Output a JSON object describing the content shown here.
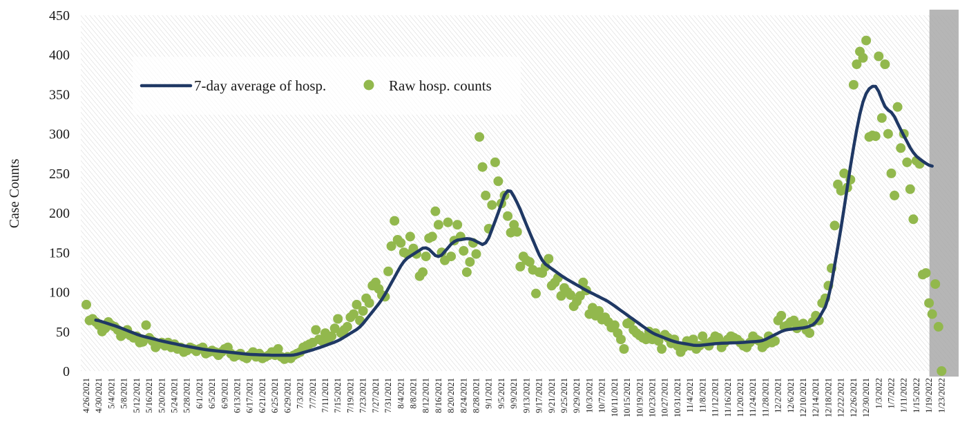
{
  "chart_data": {
    "type": "line",
    "title": "",
    "xlabel": "",
    "ylabel": "Case Counts",
    "ylim": [
      0,
      450
    ],
    "yticks": [
      0,
      50,
      100,
      150,
      200,
      250,
      300,
      350,
      400,
      450
    ],
    "x_start": "4/26/2021",
    "x_end": "1/26/2022",
    "xticks": [
      "4/26/2021",
      "4/30/2021",
      "5/4/2021",
      "5/8/2021",
      "5/12/2021",
      "5/16/2021",
      "5/20/2021",
      "5/24/2021",
      "5/28/2021",
      "6/1/2021",
      "6/5/2021",
      "6/9/2021",
      "6/13/2021",
      "6/17/2021",
      "6/21/2021",
      "6/25/2021",
      "6/29/2021",
      "7/3/2021",
      "7/7/2021",
      "7/11/2021",
      "7/15/2021",
      "7/19/2021",
      "7/23/2021",
      "7/27/2021",
      "7/31/2021",
      "8/4/2021",
      "8/8/2021",
      "8/12/2021",
      "8/16/2021",
      "8/20/2021",
      "8/24/2021",
      "8/28/2021",
      "9/1/2021",
      "9/5/2021",
      "9/9/2021",
      "9/13/2021",
      "9/17/2021",
      "9/21/2021",
      "9/25/2021",
      "9/29/2021",
      "10/3/2021",
      "10/7/2021",
      "10/11/2021",
      "10/15/2021",
      "10/19/2021",
      "10/23/2021",
      "10/27/2021",
      "10/31/2021",
      "11/4/2021",
      "11/8/2021",
      "11/12/2021",
      "11/16/2021",
      "11/20/2021",
      "11/24/2021",
      "11/28/2021",
      "12/2/2021",
      "12/6/2021",
      "12/10/2021",
      "12/14/2021",
      "12/18/2021",
      "12/22/2021",
      "12/26/2021",
      "12/30/2021",
      "1/3/2022",
      "1/7/2022",
      "1/11/2022",
      "1/15/2022",
      "1/19/2022",
      "1/23/2022"
    ],
    "grid": false,
    "legend_position": "top-left",
    "shaded_region": {
      "start": "1/20/2022",
      "end": "1/26/2022",
      "color": "#a6a6a6"
    },
    "series": [
      {
        "name": "7-day average of hosp.",
        "kind": "line",
        "color": "#1f3864",
        "start": "4/29/2021",
        "end": "1/20/2022",
        "anchors": [
          {
            "date": "4/29/2021",
            "y": 65
          },
          {
            "date": "5/6/2021",
            "y": 56
          },
          {
            "date": "5/13/2021",
            "y": 45
          },
          {
            "date": "5/20/2021",
            "y": 38
          },
          {
            "date": "5/27/2021",
            "y": 32
          },
          {
            "date": "6/3/2021",
            "y": 27
          },
          {
            "date": "6/10/2021",
            "y": 24
          },
          {
            "date": "6/17/2021",
            "y": 21
          },
          {
            "date": "6/24/2021",
            "y": 20
          },
          {
            "date": "7/1/2021",
            "y": 20
          },
          {
            "date": "7/8/2021",
            "y": 28
          },
          {
            "date": "7/15/2021",
            "y": 38
          },
          {
            "date": "7/22/2021",
            "y": 55
          },
          {
            "date": "7/29/2021",
            "y": 90
          },
          {
            "date": "8/5/2021",
            "y": 140
          },
          {
            "date": "8/12/2021",
            "y": 158
          },
          {
            "date": "8/16/2021",
            "y": 142
          },
          {
            "date": "8/21/2021",
            "y": 165
          },
          {
            "date": "8/26/2021",
            "y": 168
          },
          {
            "date": "8/31/2021",
            "y": 158
          },
          {
            "date": "9/4/2021",
            "y": 200
          },
          {
            "date": "9/7/2021",
            "y": 234
          },
          {
            "date": "9/10/2021",
            "y": 214
          },
          {
            "date": "9/14/2021",
            "y": 175
          },
          {
            "date": "9/18/2021",
            "y": 138
          },
          {
            "date": "9/25/2021",
            "y": 118
          },
          {
            "date": "10/2/2021",
            "y": 102
          },
          {
            "date": "10/9/2021",
            "y": 88
          },
          {
            "date": "10/16/2021",
            "y": 68
          },
          {
            "date": "10/23/2021",
            "y": 48
          },
          {
            "date": "10/30/2021",
            "y": 37
          },
          {
            "date": "11/6/2021",
            "y": 32
          },
          {
            "date": "11/13/2021",
            "y": 35
          },
          {
            "date": "11/20/2021",
            "y": 36
          },
          {
            "date": "11/27/2021",
            "y": 38
          },
          {
            "date": "12/4/2021",
            "y": 52
          },
          {
            "date": "12/11/2021",
            "y": 55
          },
          {
            "date": "12/14/2021",
            "y": 60
          },
          {
            "date": "12/18/2021",
            "y": 88
          },
          {
            "date": "12/22/2021",
            "y": 180
          },
          {
            "date": "12/26/2021",
            "y": 285
          },
          {
            "date": "12/29/2021",
            "y": 345
          },
          {
            "date": "1/1/2022",
            "y": 363
          },
          {
            "date": "1/3/2022",
            "y": 357
          },
          {
            "date": "1/5/2022",
            "y": 330
          },
          {
            "date": "1/7/2022",
            "y": 330
          },
          {
            "date": "1/10/2022",
            "y": 305
          },
          {
            "date": "1/14/2022",
            "y": 275
          },
          {
            "date": "1/17/2022",
            "y": 265
          },
          {
            "date": "1/20/2022",
            "y": 258
          }
        ]
      },
      {
        "name": "Raw hosp. counts",
        "kind": "scatter",
        "color": "#92b84d",
        "start": "4/26/2021",
        "values": [
          84,
          64,
          66,
          62,
          58,
          50,
          54,
          62,
          58,
          56,
          52,
          44,
          47,
          52,
          45,
          42,
          44,
          36,
          37,
          58,
          42,
          38,
          30,
          34,
          36,
          32,
          36,
          30,
          34,
          28,
          30,
          24,
          26,
          30,
          28,
          25,
          28,
          30,
          22,
          24,
          26,
          24,
          20,
          24,
          28,
          30,
          22,
          18,
          20,
          22,
          18,
          16,
          20,
          24,
          18,
          22,
          16,
          18,
          20,
          24,
          20,
          28,
          18,
          15,
          18,
          16,
          20,
          22,
          24,
          30,
          32,
          34,
          36,
          52,
          40,
          38,
          48,
          40,
          44,
          54,
          66,
          48,
          52,
          56,
          68,
          72,
          84,
          64,
          76,
          92,
          86,
          108,
          112,
          104,
          96,
          94,
          126,
          158,
          190,
          166,
          162,
          150,
          148,
          170,
          155,
          148,
          120,
          125,
          145,
          168,
          170,
          202,
          185,
          150,
          140,
          188,
          145,
          165,
          185,
          170,
          152,
          125,
          138,
          162,
          148,
          296,
          258,
          222,
          180,
          210,
          264,
          240,
          212,
          222,
          196,
          175,
          185,
          176,
          132,
          145,
          140,
          138,
          128,
          98,
          125,
          124,
          132,
          142,
          108,
          112,
          118,
          95,
          105,
          100,
          96,
          82,
          88,
          95,
          112,
          102,
          72,
          80,
          70,
          76,
          65,
          68,
          62,
          55,
          58,
          48,
          40,
          28,
          60,
          62,
          52,
          48,
          45,
          42,
          40,
          50,
          40,
          48,
          38,
          28,
          46,
          42,
          35,
          40,
          32,
          24,
          30,
          38,
          32,
          40,
          28,
          32,
          44,
          35,
          32,
          38,
          44,
          42,
          30,
          36,
          40,
          44,
          42,
          40,
          36,
          32,
          30,
          36,
          44,
          40,
          38,
          30,
          34,
          44,
          36,
          38,
          64,
          70,
          56,
          58,
          62,
          64,
          54,
          58,
          60,
          52,
          48,
          62,
          70,
          64,
          86,
          92,
          108,
          130,
          184,
          236,
          228,
          250,
          232,
          242,
          362,
          388,
          404,
          396,
          418,
          296,
          298,
          297,
          398,
          320,
          388,
          300,
          250,
          222,
          334,
          282,
          300,
          264,
          230,
          192,
          266,
          262,
          122,
          124,
          86,
          72,
          110,
          56,
          0
        ]
      }
    ]
  }
}
